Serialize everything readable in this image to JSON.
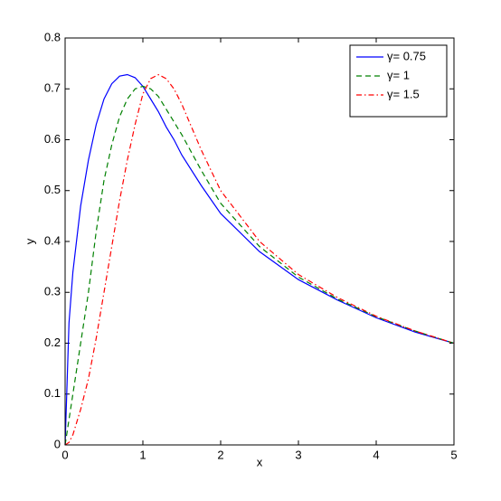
{
  "chart_data": {
    "type": "line",
    "xlabel": "x",
    "ylabel": "y",
    "x": [
      0,
      0.05,
      0.1,
      0.2,
      0.3,
      0.4,
      0.5,
      0.6,
      0.7,
      0.8,
      0.9,
      1.0,
      1.1,
      1.2,
      1.3,
      1.4,
      1.5,
      1.75,
      2,
      2.5,
      3,
      3.5,
      4,
      4.5,
      5
    ],
    "series": [
      {
        "name": "γ= 0.75",
        "color": "#0000ff",
        "dash": "solid",
        "values": [
          0,
          0.24,
          0.34,
          0.47,
          0.56,
          0.63,
          0.68,
          0.71,
          0.725,
          0.728,
          0.722,
          0.705,
          0.68,
          0.655,
          0.625,
          0.6,
          0.57,
          0.51,
          0.455,
          0.38,
          0.325,
          0.285,
          0.25,
          0.222,
          0.2
        ]
      },
      {
        "name": "γ= 1",
        "color": "#008000",
        "dash": "dashed",
        "values": [
          0,
          0.05,
          0.1,
          0.2,
          0.3,
          0.42,
          0.52,
          0.59,
          0.645,
          0.68,
          0.7,
          0.705,
          0.7,
          0.685,
          0.66,
          0.635,
          0.61,
          0.54,
          0.475,
          0.39,
          0.33,
          0.287,
          0.252,
          0.224,
          0.2
        ]
      },
      {
        "name": "γ= 1.5",
        "color": "#ff0000",
        "dash": "dashdot",
        "values": [
          0,
          0.005,
          0.02,
          0.07,
          0.13,
          0.21,
          0.3,
          0.39,
          0.48,
          0.56,
          0.63,
          0.69,
          0.72,
          0.728,
          0.72,
          0.7,
          0.67,
          0.58,
          0.5,
          0.4,
          0.335,
          0.29,
          0.253,
          0.224,
          0.2
        ]
      }
    ],
    "xlim": [
      0,
      5
    ],
    "xticks": [
      0,
      1,
      2,
      3,
      4,
      5
    ],
    "ylim": [
      0,
      0.8
    ],
    "yticks": [
      0,
      0.1,
      0.2,
      0.3,
      0.4,
      0.5,
      0.6,
      0.7,
      0.8
    ],
    "grid": false,
    "legend": "top-right"
  }
}
